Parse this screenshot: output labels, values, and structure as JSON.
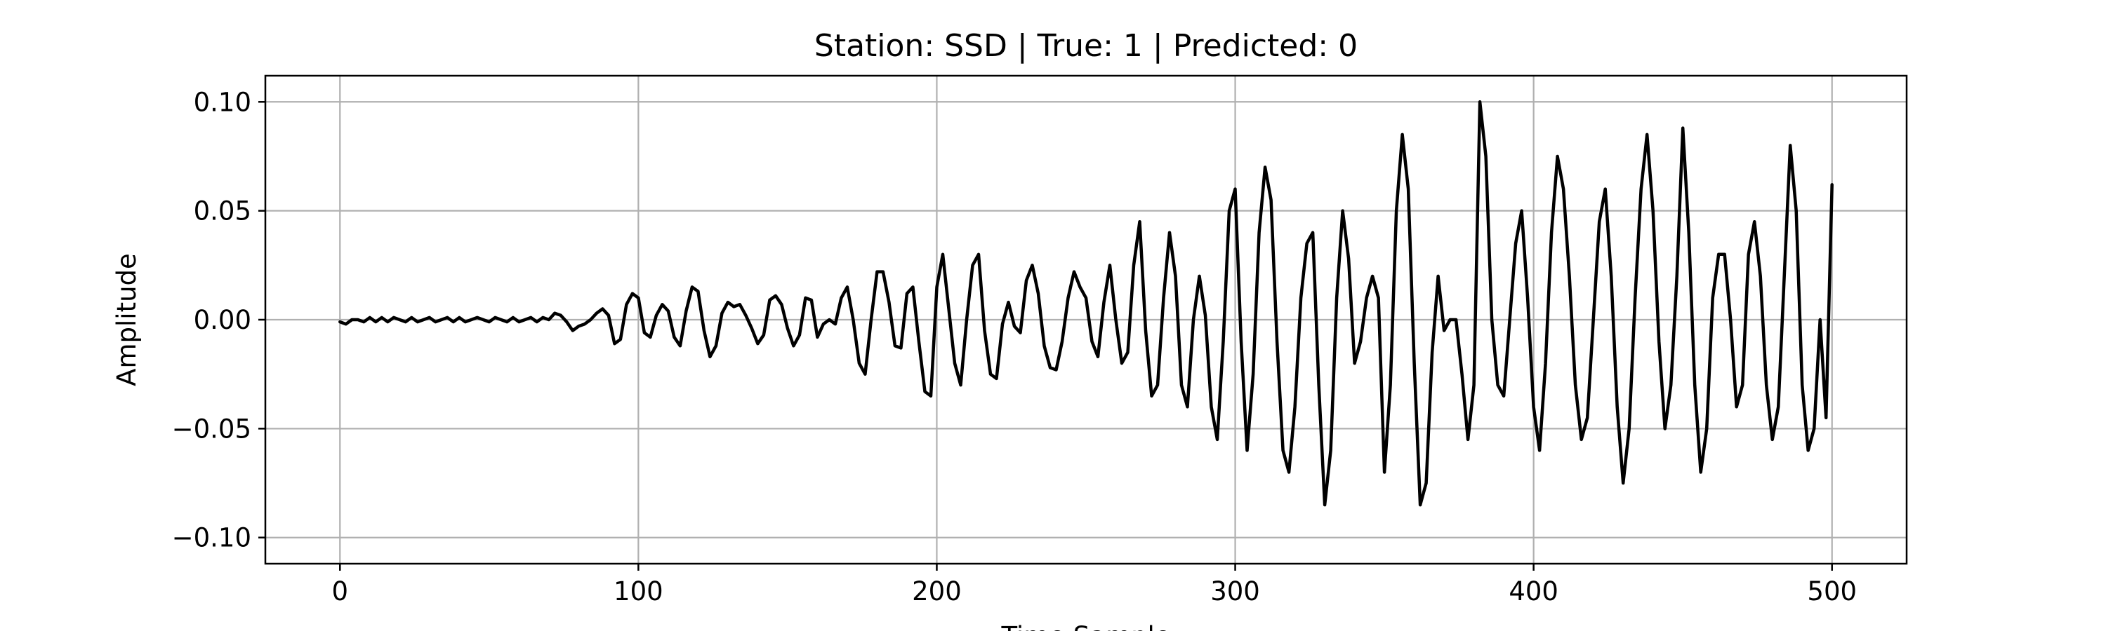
{
  "chart_data": {
    "type": "line",
    "title": "Station: SSD | True: 1 | Predicted: 0",
    "xlabel": "Time Sample",
    "ylabel": "Amplitude",
    "xlim": [
      -25,
      525
    ],
    "ylim": [
      -0.112,
      0.112
    ],
    "xticks": [
      0,
      100,
      200,
      300,
      400,
      500
    ],
    "xtick_labels": [
      "0",
      "100",
      "200",
      "300",
      "400",
      "500"
    ],
    "yticks": [
      -0.1,
      -0.05,
      0.0,
      0.05,
      0.1
    ],
    "ytick_labels": [
      "−0.10",
      "−0.05",
      "0.00",
      "0.05",
      "0.10"
    ],
    "grid": true,
    "series_color": "#000000",
    "series": [
      {
        "points": [
          [
            0,
            -0.001
          ],
          [
            2,
            -0.002
          ],
          [
            4,
            0.0
          ],
          [
            6,
            0.0
          ],
          [
            8,
            -0.001
          ],
          [
            10,
            0.001
          ],
          [
            12,
            -0.001
          ],
          [
            14,
            0.001
          ],
          [
            16,
            -0.001
          ],
          [
            18,
            0.001
          ],
          [
            20,
            0.0
          ],
          [
            22,
            -0.001
          ],
          [
            24,
            0.001
          ],
          [
            26,
            -0.001
          ],
          [
            28,
            0.0
          ],
          [
            30,
            0.001
          ],
          [
            32,
            -0.001
          ],
          [
            34,
            0.0
          ],
          [
            36,
            0.001
          ],
          [
            38,
            -0.001
          ],
          [
            40,
            0.001
          ],
          [
            42,
            -0.001
          ],
          [
            44,
            0.0
          ],
          [
            46,
            0.001
          ],
          [
            48,
            0.0
          ],
          [
            50,
            -0.001
          ],
          [
            52,
            0.001
          ],
          [
            54,
            0.0
          ],
          [
            56,
            -0.001
          ],
          [
            58,
            0.001
          ],
          [
            60,
            -0.001
          ],
          [
            62,
            0.0
          ],
          [
            64,
            0.001
          ],
          [
            66,
            -0.001
          ],
          [
            68,
            0.001
          ],
          [
            70,
            0.0
          ],
          [
            72,
            0.003
          ],
          [
            74,
            0.002
          ],
          [
            76,
            -0.001
          ],
          [
            78,
            -0.005
          ],
          [
            80,
            -0.003
          ],
          [
            82,
            -0.002
          ],
          [
            84,
            0.0
          ],
          [
            86,
            0.003
          ],
          [
            88,
            0.005
          ],
          [
            90,
            0.002
          ],
          [
            92,
            -0.011
          ],
          [
            94,
            -0.009
          ],
          [
            96,
            0.007
          ],
          [
            98,
            0.012
          ],
          [
            100,
            0.01
          ],
          [
            102,
            -0.006
          ],
          [
            104,
            -0.008
          ],
          [
            106,
            0.002
          ],
          [
            108,
            0.007
          ],
          [
            110,
            0.004
          ],
          [
            112,
            -0.008
          ],
          [
            114,
            -0.012
          ],
          [
            116,
            0.004
          ],
          [
            118,
            0.015
          ],
          [
            120,
            0.013
          ],
          [
            122,
            -0.005
          ],
          [
            124,
            -0.017
          ],
          [
            126,
            -0.012
          ],
          [
            128,
            0.003
          ],
          [
            130,
            0.008
          ],
          [
            132,
            0.006
          ],
          [
            134,
            0.007
          ],
          [
            136,
            0.002
          ],
          [
            138,
            -0.004
          ],
          [
            140,
            -0.011
          ],
          [
            142,
            -0.007
          ],
          [
            144,
            0.009
          ],
          [
            146,
            0.011
          ],
          [
            148,
            0.007
          ],
          [
            150,
            -0.004
          ],
          [
            152,
            -0.012
          ],
          [
            154,
            -0.007
          ],
          [
            156,
            0.01
          ],
          [
            158,
            0.009
          ],
          [
            160,
            -0.008
          ],
          [
            162,
            -0.002
          ],
          [
            164,
            0.0
          ],
          [
            166,
            -0.002
          ],
          [
            168,
            0.01
          ],
          [
            170,
            0.015
          ],
          [
            172,
            0.0
          ],
          [
            174,
            -0.02
          ],
          [
            176,
            -0.025
          ],
          [
            178,
            0.0
          ],
          [
            180,
            0.022
          ],
          [
            182,
            0.022
          ],
          [
            184,
            0.008
          ],
          [
            186,
            -0.012
          ],
          [
            188,
            -0.013
          ],
          [
            190,
            0.012
          ],
          [
            192,
            0.015
          ],
          [
            194,
            -0.01
          ],
          [
            196,
            -0.033
          ],
          [
            198,
            -0.035
          ],
          [
            200,
            0.015
          ],
          [
            202,
            0.03
          ],
          [
            204,
            0.005
          ],
          [
            206,
            -0.02
          ],
          [
            208,
            -0.03
          ],
          [
            210,
            0.0
          ],
          [
            212,
            0.025
          ],
          [
            214,
            0.03
          ],
          [
            216,
            -0.005
          ],
          [
            218,
            -0.025
          ],
          [
            220,
            -0.027
          ],
          [
            222,
            -0.002
          ],
          [
            224,
            0.008
          ],
          [
            226,
            -0.003
          ],
          [
            228,
            -0.006
          ],
          [
            230,
            0.018
          ],
          [
            232,
            0.025
          ],
          [
            234,
            0.012
          ],
          [
            236,
            -0.012
          ],
          [
            238,
            -0.022
          ],
          [
            240,
            -0.023
          ],
          [
            242,
            -0.01
          ],
          [
            244,
            0.01
          ],
          [
            246,
            0.022
          ],
          [
            248,
            0.015
          ],
          [
            250,
            0.01
          ],
          [
            252,
            -0.01
          ],
          [
            254,
            -0.017
          ],
          [
            256,
            0.008
          ],
          [
            258,
            0.025
          ],
          [
            260,
            0.0
          ],
          [
            262,
            -0.02
          ],
          [
            264,
            -0.015
          ],
          [
            266,
            0.025
          ],
          [
            268,
            0.045
          ],
          [
            270,
            -0.005
          ],
          [
            272,
            -0.035
          ],
          [
            274,
            -0.03
          ],
          [
            276,
            0.01
          ],
          [
            278,
            0.04
          ],
          [
            280,
            0.02
          ],
          [
            282,
            -0.03
          ],
          [
            284,
            -0.04
          ],
          [
            286,
            0.0
          ],
          [
            288,
            0.02
          ],
          [
            290,
            0.002
          ],
          [
            292,
            -0.04
          ],
          [
            294,
            -0.055
          ],
          [
            296,
            -0.01
          ],
          [
            298,
            0.05
          ],
          [
            300,
            0.06
          ],
          [
            302,
            -0.01
          ],
          [
            304,
            -0.06
          ],
          [
            306,
            -0.025
          ],
          [
            308,
            0.04
          ],
          [
            310,
            0.07
          ],
          [
            312,
            0.055
          ],
          [
            314,
            -0.01
          ],
          [
            316,
            -0.06
          ],
          [
            318,
            -0.07
          ],
          [
            320,
            -0.04
          ],
          [
            322,
            0.01
          ],
          [
            324,
            0.035
          ],
          [
            326,
            0.04
          ],
          [
            328,
            -0.03
          ],
          [
            330,
            -0.085
          ],
          [
            332,
            -0.06
          ],
          [
            334,
            0.01
          ],
          [
            336,
            0.05
          ],
          [
            338,
            0.028
          ],
          [
            340,
            -0.02
          ],
          [
            342,
            -0.01
          ],
          [
            344,
            0.01
          ],
          [
            346,
            0.02
          ],
          [
            348,
            0.01
          ],
          [
            350,
            -0.07
          ],
          [
            352,
            -0.03
          ],
          [
            354,
            0.05
          ],
          [
            356,
            0.085
          ],
          [
            358,
            0.06
          ],
          [
            360,
            -0.02
          ],
          [
            362,
            -0.085
          ],
          [
            364,
            -0.075
          ],
          [
            366,
            -0.015
          ],
          [
            368,
            0.02
          ],
          [
            370,
            -0.005
          ],
          [
            372,
            0.0
          ],
          [
            374,
            0.0
          ],
          [
            376,
            -0.025
          ],
          [
            378,
            -0.055
          ],
          [
            380,
            -0.03
          ],
          [
            382,
            0.1
          ],
          [
            384,
            0.075
          ],
          [
            386,
            0.0
          ],
          [
            388,
            -0.03
          ],
          [
            390,
            -0.035
          ],
          [
            392,
            0.0
          ],
          [
            394,
            0.035
          ],
          [
            396,
            0.05
          ],
          [
            398,
            0.01
          ],
          [
            400,
            -0.04
          ],
          [
            402,
            -0.06
          ],
          [
            404,
            -0.02
          ],
          [
            406,
            0.04
          ],
          [
            408,
            0.075
          ],
          [
            410,
            0.06
          ],
          [
            412,
            0.02
          ],
          [
            414,
            -0.03
          ],
          [
            416,
            -0.055
          ],
          [
            418,
            -0.045
          ],
          [
            420,
            0.0
          ],
          [
            422,
            0.045
          ],
          [
            424,
            0.06
          ],
          [
            426,
            0.02
          ],
          [
            428,
            -0.04
          ],
          [
            430,
            -0.075
          ],
          [
            432,
            -0.05
          ],
          [
            434,
            0.01
          ],
          [
            436,
            0.06
          ],
          [
            438,
            0.085
          ],
          [
            440,
            0.05
          ],
          [
            442,
            -0.01
          ],
          [
            444,
            -0.05
          ],
          [
            446,
            -0.03
          ],
          [
            448,
            0.02
          ],
          [
            450,
            0.088
          ],
          [
            452,
            0.04
          ],
          [
            454,
            -0.03
          ],
          [
            456,
            -0.07
          ],
          [
            458,
            -0.05
          ],
          [
            460,
            0.01
          ],
          [
            462,
            0.03
          ],
          [
            464,
            0.03
          ],
          [
            466,
            0.0
          ],
          [
            468,
            -0.04
          ],
          [
            470,
            -0.03
          ],
          [
            472,
            0.03
          ],
          [
            474,
            0.045
          ],
          [
            476,
            0.02
          ],
          [
            478,
            -0.03
          ],
          [
            480,
            -0.055
          ],
          [
            482,
            -0.04
          ],
          [
            484,
            0.02
          ],
          [
            486,
            0.08
          ],
          [
            488,
            0.05
          ],
          [
            490,
            -0.03
          ],
          [
            492,
            -0.06
          ],
          [
            494,
            -0.05
          ],
          [
            496,
            0.0
          ],
          [
            498,
            -0.045
          ],
          [
            500,
            0.062
          ]
        ]
      }
    ]
  }
}
